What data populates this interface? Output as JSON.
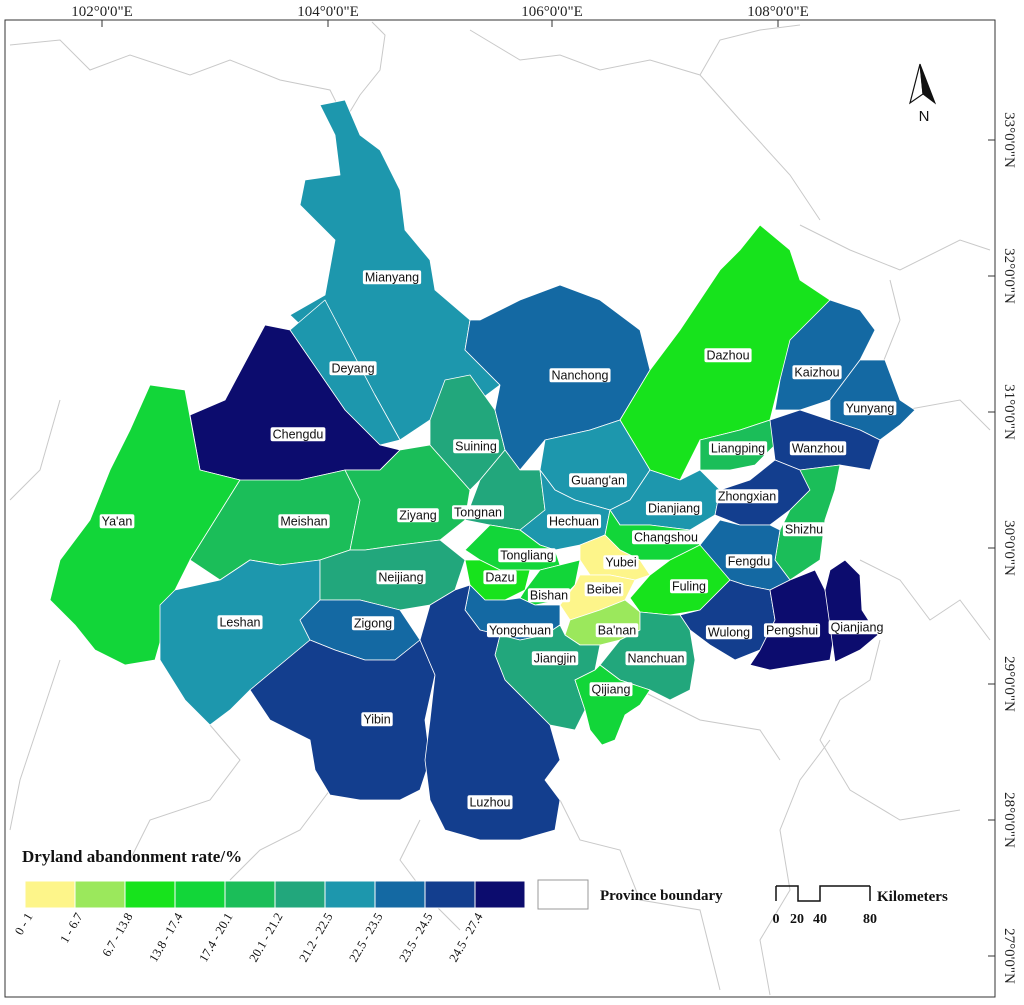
{
  "map": {
    "legend_title": "Dryland abandonment rate/%",
    "longitude_labels": [
      "102°0'0\"E",
      "104°0'0\"E",
      "106°0'0\"E",
      "108°0'0\"E"
    ],
    "latitude_labels": [
      "33°0'0\"N",
      "32°0'0\"N",
      "31°0'0\"N",
      "30°0'0\"N",
      "29°0'0\"N",
      "28°0'0\"N",
      "27°0'0\"N"
    ],
    "classes": [
      {
        "range": "0 - 1",
        "color": "#fdf58a"
      },
      {
        "range": "1 - 6.7",
        "color": "#9be85c"
      },
      {
        "range": "6.7 - 13.8",
        "color": "#17e31c"
      },
      {
        "range": "13.8 - 17.4",
        "color": "#12d639"
      },
      {
        "range": "17.4 - 20.1",
        "color": "#1bbe59"
      },
      {
        "range": "20.1 - 21.2",
        "color": "#22a77c"
      },
      {
        "range": "21.2 - 22.5",
        "color": "#1d97ad"
      },
      {
        "range": "22.5 - 23.5",
        "color": "#1469a3"
      },
      {
        "range": "23.5 - 24.5",
        "color": "#133e8e"
      },
      {
        "range": "24.5 - 27.4",
        "color": "#0c0c6e"
      }
    ],
    "province_boundary_label": "Province boundary",
    "scale": {
      "unit": "Kilometers",
      "ticks": [
        "0",
        "20",
        "40",
        "80"
      ]
    },
    "north_label": "N",
    "regions": [
      {
        "name": "Mianyang",
        "class": 6
      },
      {
        "name": "Deyang",
        "class": 6
      },
      {
        "name": "Chengdu",
        "class": 9
      },
      {
        "name": "Ya'an",
        "class": 3
      },
      {
        "name": "Meishan",
        "class": 4
      },
      {
        "name": "Leshan",
        "class": 6
      },
      {
        "name": "Ziyang",
        "class": 4
      },
      {
        "name": "Suining",
        "class": 5
      },
      {
        "name": "Nanchong",
        "class": 7
      },
      {
        "name": "Dazhou",
        "class": 2
      },
      {
        "name": "Kaizhou",
        "class": 7
      },
      {
        "name": "Yunyang",
        "class": 7
      },
      {
        "name": "Liangping",
        "class": 4
      },
      {
        "name": "Wanzhou",
        "class": 8
      },
      {
        "name": "Guang'an",
        "class": 6
      },
      {
        "name": "Tongnan",
        "class": 5
      },
      {
        "name": "Hechuan",
        "class": 6
      },
      {
        "name": "Dianjiang",
        "class": 6
      },
      {
        "name": "Zhongxian",
        "class": 8
      },
      {
        "name": "Changshou",
        "class": 3
      },
      {
        "name": "Shizhu",
        "class": 4
      },
      {
        "name": "Neijiang",
        "class": 5
      },
      {
        "name": "Tongliang",
        "class": 3
      },
      {
        "name": "Yubei",
        "class": 0
      },
      {
        "name": "Dazu",
        "class": 2
      },
      {
        "name": "Bishan",
        "class": 3
      },
      {
        "name": "Beibei",
        "class": 0
      },
      {
        "name": "Fuling",
        "class": 2
      },
      {
        "name": "Fengdu",
        "class": 7
      },
      {
        "name": "Zigong",
        "class": 7
      },
      {
        "name": "Yongchuan",
        "class": 7
      },
      {
        "name": "Ba'nan",
        "class": 1
      },
      {
        "name": "Wulong",
        "class": 8
      },
      {
        "name": "Pengshui",
        "class": 9
      },
      {
        "name": "Qianjiang",
        "class": 9
      },
      {
        "name": "Jiangjin",
        "class": 5
      },
      {
        "name": "Nanchuan",
        "class": 5
      },
      {
        "name": "Qijiang",
        "class": 3
      },
      {
        "name": "Yibin",
        "class": 8
      },
      {
        "name": "Luzhou",
        "class": 8
      }
    ]
  }
}
